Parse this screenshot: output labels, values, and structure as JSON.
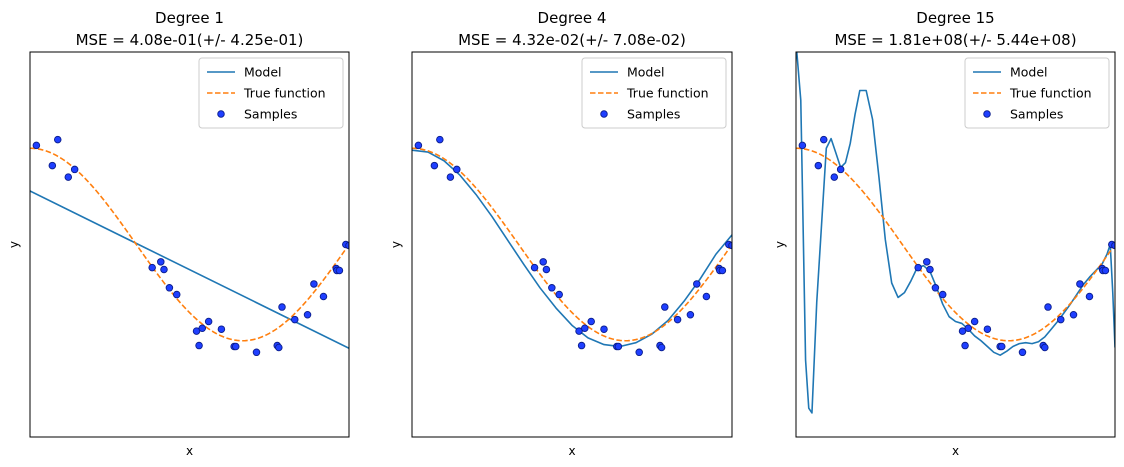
{
  "chart_data": [
    {
      "type": "line",
      "title": "Degree 1",
      "subtitle": "MSE = 4.08e-01(+/- 4.25e-01)",
      "xlabel": "x",
      "ylabel": "y",
      "xlim": [
        0,
        1
      ],
      "ylim": [
        -2,
        2
      ],
      "legend": "top-right",
      "grid": false,
      "series": [
        {
          "name": "Model",
          "kind": "line",
          "x": [
            0,
            1
          ],
          "y": [
            0.556,
            -1.078
          ]
        },
        {
          "name": "True function",
          "kind": "dashed",
          "function": "cos(1.5*pi*x)"
        },
        {
          "name": "Samples",
          "kind": "scatter",
          "x": [
            0.02,
            0.07,
            0.087,
            0.12,
            0.14,
            0.383,
            0.41,
            0.42,
            0.437,
            0.46,
            0.522,
            0.53,
            0.54,
            0.56,
            0.6,
            0.64,
            0.645,
            0.71,
            0.775,
            0.78,
            0.79,
            0.83,
            0.87,
            0.89,
            0.92,
            0.96,
            0.962,
            0.97,
            0.99,
            1.0
          ],
          "y": [
            1.03,
            0.82,
            1.09,
            0.7,
            0.78,
            -0.24,
            -0.18,
            -0.26,
            -0.45,
            -0.52,
            -0.9,
            -1.05,
            -0.87,
            -0.8,
            -0.88,
            -1.06,
            -1.06,
            -1.12,
            -1.05,
            -1.07,
            -0.65,
            -0.78,
            -0.73,
            -0.41,
            -0.54,
            -0.25,
            -0.27,
            -0.27,
            0.0,
            -0.01
          ]
        }
      ]
    },
    {
      "type": "line",
      "title": "Degree 4",
      "subtitle": "MSE = 4.32e-02(+/- 7.08e-02)",
      "xlabel": "x",
      "ylabel": "y",
      "xlim": [
        0,
        1
      ],
      "ylim": [
        -2,
        2
      ],
      "legend": "top-right",
      "grid": false,
      "series": [
        {
          "name": "Model",
          "kind": "line",
          "x": [
            0,
            0.05,
            0.1,
            0.15,
            0.2,
            0.25,
            0.3,
            0.35,
            0.4,
            0.45,
            0.5,
            0.55,
            0.6,
            0.65,
            0.7,
            0.75,
            0.8,
            0.85,
            0.9,
            0.95,
            1.0
          ],
          "y": [
            0.98,
            0.96,
            0.87,
            0.72,
            0.52,
            0.29,
            0.04,
            -0.21,
            -0.45,
            -0.66,
            -0.84,
            -0.97,
            -1.04,
            -1.06,
            -1.02,
            -0.93,
            -0.79,
            -0.59,
            -0.36,
            -0.1,
            0.1
          ]
        },
        {
          "name": "True function",
          "kind": "dashed",
          "function": "cos(1.5*pi*x)"
        },
        {
          "name": "Samples",
          "kind": "scatter",
          "x": [
            0.02,
            0.07,
            0.087,
            0.12,
            0.14,
            0.383,
            0.41,
            0.42,
            0.437,
            0.46,
            0.522,
            0.53,
            0.54,
            0.56,
            0.6,
            0.64,
            0.645,
            0.71,
            0.775,
            0.78,
            0.79,
            0.83,
            0.87,
            0.89,
            0.92,
            0.96,
            0.962,
            0.97,
            0.99,
            1.0
          ],
          "y": [
            1.03,
            0.82,
            1.09,
            0.7,
            0.78,
            -0.24,
            -0.18,
            -0.26,
            -0.45,
            -0.52,
            -0.9,
            -1.05,
            -0.87,
            -0.8,
            -0.88,
            -1.06,
            -1.06,
            -1.12,
            -1.05,
            -1.07,
            -0.65,
            -0.78,
            -0.73,
            -0.41,
            -0.54,
            -0.25,
            -0.27,
            -0.27,
            0.0,
            -0.01
          ]
        }
      ]
    },
    {
      "type": "line",
      "title": "Degree 15",
      "subtitle": "MSE = 1.81e+08(+/- 5.44e+08)",
      "xlabel": "x",
      "ylabel": "y",
      "xlim": [
        0,
        1
      ],
      "ylim": [
        -2,
        2
      ],
      "legend": "top-right",
      "grid": false,
      "series": [
        {
          "name": "Model",
          "kind": "line",
          "x": [
            0.0,
            0.015,
            0.03,
            0.04,
            0.05,
            0.065,
            0.08,
            0.095,
            0.11,
            0.125,
            0.14,
            0.155,
            0.17,
            0.185,
            0.2,
            0.22,
            0.24,
            0.26,
            0.28,
            0.3,
            0.32,
            0.34,
            0.36,
            0.38,
            0.4,
            0.42,
            0.44,
            0.46,
            0.48,
            0.5,
            0.52,
            0.54,
            0.56,
            0.58,
            0.6,
            0.62,
            0.64,
            0.66,
            0.68,
            0.7,
            0.72,
            0.74,
            0.76,
            0.78,
            0.8,
            0.82,
            0.84,
            0.86,
            0.88,
            0.9,
            0.92,
            0.94,
            0.96,
            0.975,
            0.985,
            0.993,
            1.0
          ],
          "y": [
            2.1,
            1.5,
            -1.2,
            -1.7,
            -1.75,
            -0.6,
            0.2,
            1.0,
            1.1,
            0.95,
            0.8,
            0.85,
            1.05,
            1.35,
            1.6,
            1.6,
            1.3,
            0.7,
            0.05,
            -0.4,
            -0.55,
            -0.5,
            -0.38,
            -0.24,
            -0.22,
            -0.28,
            -0.44,
            -0.62,
            -0.75,
            -0.8,
            -0.82,
            -0.88,
            -0.95,
            -1.0,
            -1.06,
            -1.12,
            -1.15,
            -1.11,
            -1.06,
            -1.03,
            -1.02,
            -1.03,
            -1.01,
            -0.96,
            -0.88,
            -0.8,
            -0.71,
            -0.62,
            -0.52,
            -0.42,
            -0.34,
            -0.27,
            -0.2,
            -0.1,
            0.0,
            -0.5,
            -1.07
          ]
        },
        {
          "name": "True function",
          "kind": "dashed",
          "function": "cos(1.5*pi*x)"
        },
        {
          "name": "Samples",
          "kind": "scatter",
          "x": [
            0.02,
            0.07,
            0.087,
            0.12,
            0.14,
            0.383,
            0.41,
            0.42,
            0.437,
            0.46,
            0.522,
            0.53,
            0.54,
            0.56,
            0.6,
            0.64,
            0.645,
            0.71,
            0.775,
            0.78,
            0.79,
            0.83,
            0.87,
            0.89,
            0.92,
            0.96,
            0.962,
            0.97,
            0.99,
            1.0
          ],
          "y": [
            1.03,
            0.82,
            1.09,
            0.7,
            0.78,
            -0.24,
            -0.18,
            -0.26,
            -0.45,
            -0.52,
            -0.9,
            -1.05,
            -0.87,
            -0.8,
            -0.88,
            -1.06,
            -1.06,
            -1.12,
            -1.05,
            -1.07,
            -0.65,
            -0.78,
            -0.73,
            -0.41,
            -0.54,
            -0.25,
            -0.27,
            -0.27,
            0.0,
            -0.01
          ]
        }
      ]
    }
  ],
  "colors": {
    "model": "#1f77b4",
    "true_function": "#ff7f0e",
    "samples_fill": "#1f3fff",
    "samples_edge": "#0a1d8c"
  }
}
